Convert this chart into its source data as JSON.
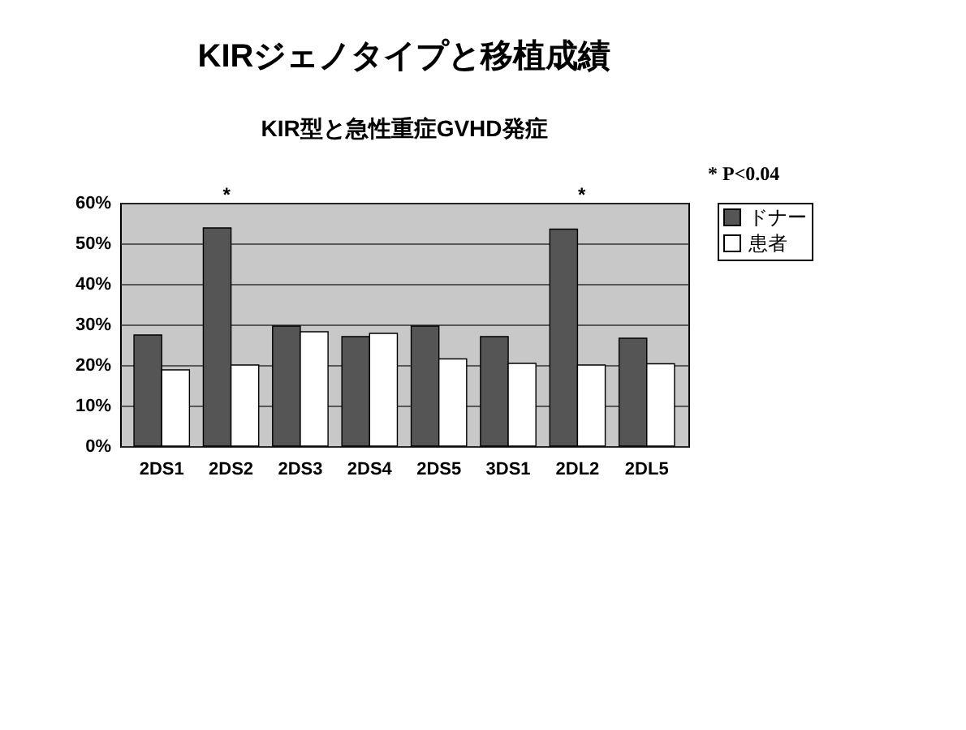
{
  "chart_data": {
    "type": "bar",
    "title": "KIRジェノタイプと移植成績",
    "subtitle": "KIR型と急性重症GVHD発症",
    "categories": [
      "2DS1",
      "2DS2",
      "2DS3",
      "2DS4",
      "2DS5",
      "3DS1",
      "2DL2",
      "2DL5"
    ],
    "series": [
      {
        "name": "ドナー",
        "color": "#555555",
        "values": [
          27.4,
          53.8,
          29.6,
          27,
          29.6,
          27,
          53.5,
          26.6
        ]
      },
      {
        "name": "患者",
        "color": "#ffffff",
        "values": [
          18.8,
          20,
          28.2,
          27.8,
          21.5,
          20.4,
          20,
          20.3
        ]
      }
    ],
    "ylim": [
      0,
      60
    ],
    "yticks": [
      {
        "value": 0,
        "label": "0%"
      },
      {
        "value": 10,
        "label": "10%"
      },
      {
        "value": 20,
        "label": "20%"
      },
      {
        "value": 30,
        "label": "30%"
      },
      {
        "value": 40,
        "label": "40%"
      },
      {
        "value": 50,
        "label": "50%"
      },
      {
        "value": 60,
        "label": "60%"
      }
    ],
    "grid": "y",
    "legend": "right",
    "annotations": [
      "* P<0.04",
      "*",
      "*"
    ]
  }
}
